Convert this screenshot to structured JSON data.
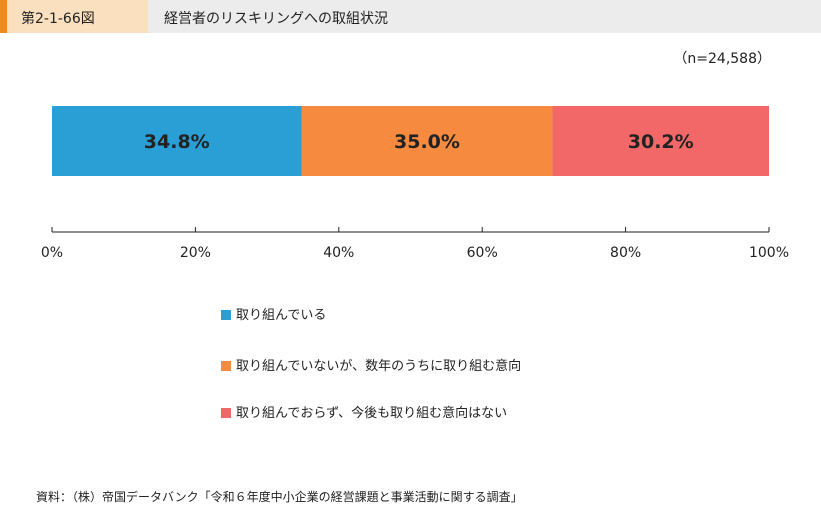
{
  "header": {
    "figure_number": "第2-1-66図",
    "title": "経営者のリスキリングへの取組状況"
  },
  "sample_size": "（n=24,588）",
  "chart_data": {
    "type": "bar",
    "orientation": "horizontal-stacked-100",
    "series": [
      {
        "name": "取り組んでいる",
        "value": 34.8,
        "label": "34.8%",
        "color": "#2a9fd6"
      },
      {
        "name": "取り組んでいないが、数年のうちに取り組む意向",
        "value": 35.0,
        "label": "35.0%",
        "color": "#f68a3f"
      },
      {
        "name": "取り組んでおらず、今後も取り組む意向はない",
        "value": 30.2,
        "label": "30.2%",
        "color": "#f26868"
      }
    ],
    "xlim": [
      0,
      100
    ],
    "xticks": [
      "0%",
      "20%",
      "40%",
      "60%",
      "80%",
      "100%"
    ],
    "grid": false,
    "legend_position": "bottom"
  },
  "source": "資料：（株）帝国データバンク「令和６年度中小企業の経営課題と事業活動に関する調査」"
}
